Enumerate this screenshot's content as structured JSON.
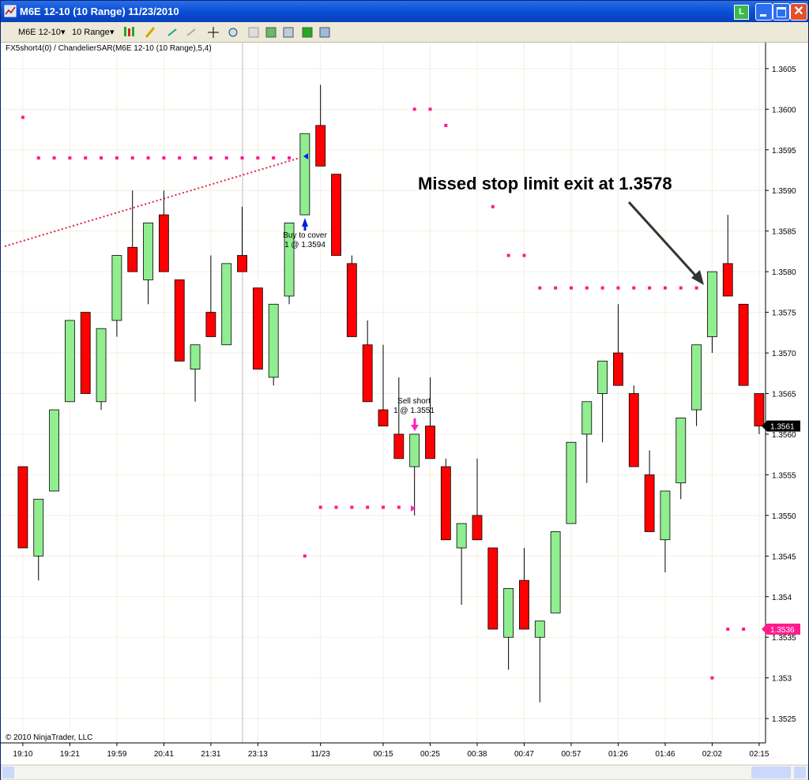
{
  "window": {
    "title": "M6E 12-10 (10 Range)  11/23/2010",
    "badge": "L"
  },
  "toolbar": {
    "instrument": "M6E 12-10",
    "period": "10 Range"
  },
  "indicator_label": "FX5short4(0) / ChandelierSAR(M6E 12-10 (10 Range),5,4)",
  "copyright": "© 2010 NinjaTrader, LLC",
  "chart_data": {
    "type": "candlestick",
    "categories": [
      "19:10",
      null,
      null,
      "19:21",
      null,
      null,
      "19:59",
      null,
      null,
      "20:41",
      null,
      null,
      "21:31",
      null,
      null,
      "23:13",
      null,
      null,
      null,
      "11/23",
      null,
      null,
      null,
      "00:15",
      null,
      null,
      "00:25",
      null,
      null,
      "00:38",
      null,
      null,
      "00:47",
      null,
      null,
      "00:57",
      null,
      null,
      "01:26",
      null,
      null,
      "01:46",
      null,
      null,
      "02:02",
      null,
      null,
      "02:15"
    ],
    "open": [
      1.3556,
      1.3545,
      1.3553,
      1.3564,
      1.3575,
      1.3564,
      1.3574,
      1.3583,
      1.3579,
      1.3587,
      1.3579,
      1.3568,
      1.3575,
      1.3571,
      1.3582,
      1.3578,
      1.3567,
      1.3577,
      1.3587,
      1.3598,
      1.3592,
      1.3581,
      1.3571,
      1.3563,
      1.356,
      1.3556,
      1.3561,
      1.3556,
      1.3546,
      1.355,
      1.3546,
      1.3535,
      1.3542,
      1.3535,
      1.3538,
      1.3549,
      1.356,
      1.3565,
      1.357,
      1.3565,
      1.3555,
      1.3547,
      1.3554,
      1.3563,
      1.3572,
      1.3581,
      1.3576,
      1.3565
    ],
    "high": [
      1.3556,
      1.3552,
      1.3563,
      1.3574,
      1.3575,
      1.3573,
      1.3582,
      1.359,
      1.3586,
      1.359,
      1.3579,
      1.3571,
      1.3582,
      1.3581,
      1.3588,
      1.3578,
      1.3576,
      1.3586,
      1.3597,
      1.3603,
      1.3592,
      1.3582,
      1.3574,
      1.3571,
      1.3567,
      1.356,
      1.3567,
      1.3557,
      1.3549,
      1.3557,
      1.3546,
      1.3541,
      1.3546,
      1.3537,
      1.3548,
      1.3559,
      1.3564,
      1.3569,
      1.3576,
      1.3566,
      1.3558,
      1.3553,
      1.3562,
      1.3571,
      1.358,
      1.3587,
      1.3576,
      1.3565
    ],
    "low": [
      1.3546,
      1.3542,
      1.3553,
      1.3564,
      1.3565,
      1.3563,
      1.3572,
      1.358,
      1.3576,
      1.358,
      1.3569,
      1.3564,
      1.3572,
      1.3571,
      1.358,
      1.3568,
      1.3566,
      1.3576,
      1.3587,
      1.3593,
      1.3582,
      1.3572,
      1.3564,
      1.3561,
      1.3557,
      1.355,
      1.3557,
      1.3547,
      1.3539,
      1.3547,
      1.3536,
      1.3531,
      1.3536,
      1.3527,
      1.3538,
      1.3549,
      1.3554,
      1.3559,
      1.3566,
      1.3556,
      1.3548,
      1.3543,
      1.3552,
      1.3561,
      1.357,
      1.3577,
      1.3566,
      1.356
    ],
    "close": [
      1.3546,
      1.3552,
      1.3563,
      1.3574,
      1.3565,
      1.3573,
      1.3582,
      1.358,
      1.3586,
      1.358,
      1.3569,
      1.3571,
      1.3572,
      1.3581,
      1.358,
      1.3568,
      1.3576,
      1.3586,
      1.3597,
      1.3593,
      1.3582,
      1.3572,
      1.3564,
      1.3561,
      1.3557,
      1.356,
      1.3557,
      1.3547,
      1.3549,
      1.3547,
      1.3536,
      1.3541,
      1.3536,
      1.3537,
      1.3548,
      1.3559,
      1.3564,
      1.3569,
      1.3566,
      1.3556,
      1.3548,
      1.3553,
      1.3562,
      1.3571,
      1.358,
      1.3577,
      1.3566,
      1.3561
    ],
    "up_color": "#90ee90",
    "down_color": "#ff0000",
    "stops": {
      "color": "#ff1a8c",
      "values": [
        1.3599,
        1.3594,
        1.3594,
        1.3594,
        1.3594,
        1.3594,
        1.3594,
        1.3594,
        1.3594,
        1.3594,
        1.3594,
        1.3594,
        1.3594,
        1.3594,
        1.3594,
        1.3594,
        1.3594,
        1.3594,
        1.3545,
        1.3551,
        1.3551,
        1.3551,
        1.3551,
        1.3551,
        1.3551,
        1.36,
        1.36,
        1.3598,
        null,
        null,
        1.3588,
        1.3582,
        1.3582,
        1.3578,
        1.3578,
        1.3578,
        1.3578,
        1.3578,
        1.3578,
        1.3578,
        1.3578,
        1.3578,
        1.3578,
        1.3578,
        1.353,
        1.3536,
        1.3536,
        null
      ]
    },
    "ylim": [
      1.3522,
      1.3608
    ],
    "yticks": [
      1.3525,
      1.353,
      1.3535,
      1.354,
      1.3545,
      {
        "value": 1.355,
        "label": "1.3550"
      },
      1.3555,
      {
        "value": 1.356,
        "label": "1.3560"
      },
      1.3565,
      {
        "value": 1.357,
        "label": "1.3570"
      },
      1.3575,
      {
        "value": 1.358,
        "label": "1.3580"
      },
      1.3585,
      {
        "value": 1.359,
        "label": "1.3590"
      },
      1.3595,
      {
        "value": 1.36,
        "label": "1.3600"
      },
      1.3605
    ],
    "grid": true,
    "price_markers": [
      {
        "value": 1.3561,
        "color": "#000000"
      },
      {
        "value": 1.3536,
        "color": "#ff1a8c"
      }
    ],
    "annotations": [
      "Buy to cover",
      "1 @ 1.3594",
      "Sell short",
      "1 @ 1.3551",
      "Missed stop limit exit at 1.3578"
    ]
  }
}
